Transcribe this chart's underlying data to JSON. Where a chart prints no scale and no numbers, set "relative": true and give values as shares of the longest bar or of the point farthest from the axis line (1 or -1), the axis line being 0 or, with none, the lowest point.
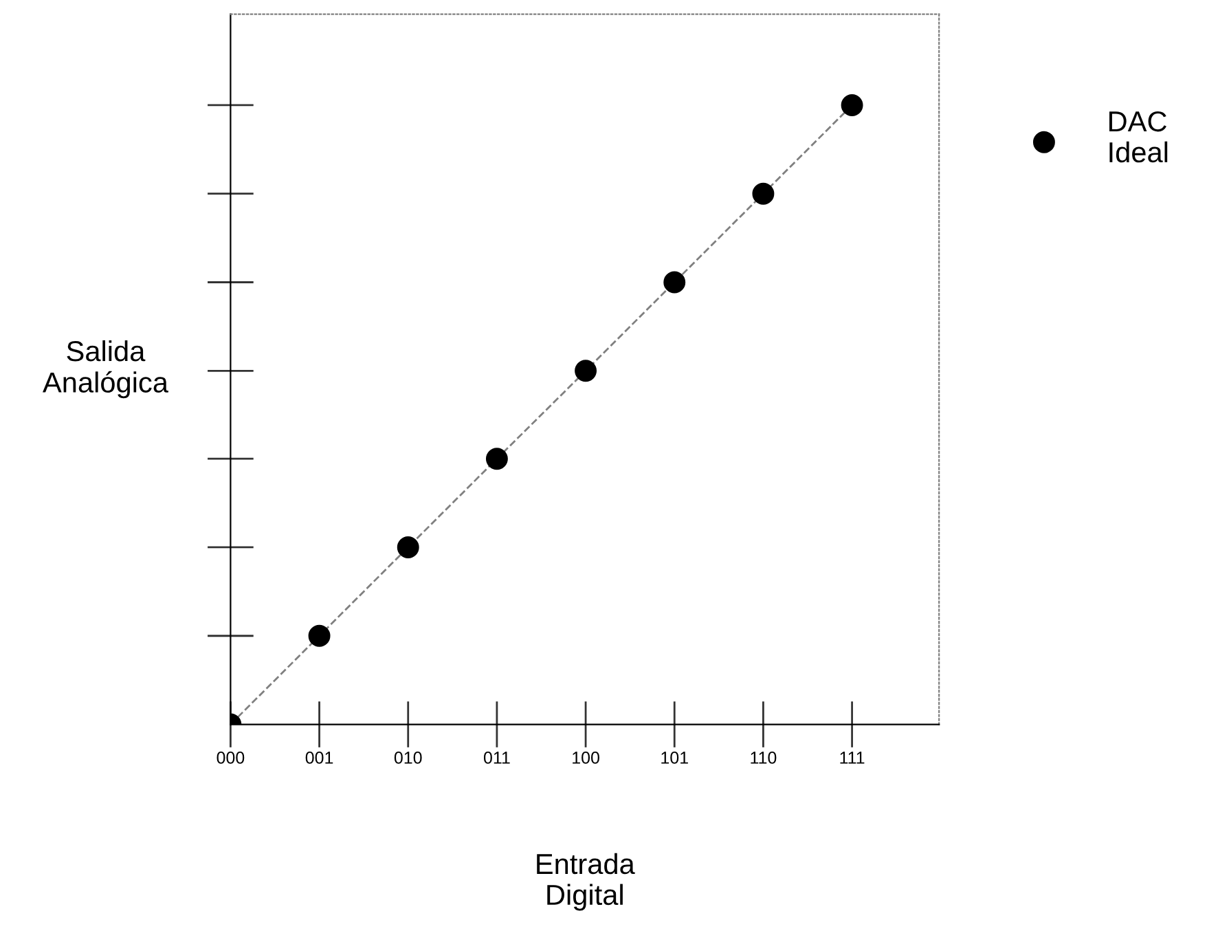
{
  "chart_data": {
    "type": "scatter",
    "xlabel": "Entrada\nDigital",
    "ylabel": "Salida\nAnalógica",
    "categories": [
      "000",
      "001",
      "010",
      "011",
      "100",
      "101",
      "110",
      "111"
    ],
    "relative": true,
    "legend": "top right",
    "grid": false,
    "series": [
      {
        "type": "line",
        "color": "#808080",
        "line_style": "dashed",
        "values": [
          0,
          0.143,
          0.286,
          0.429,
          0.571,
          0.714,
          0.857,
          1
        ]
      },
      {
        "name": "DAC\nIdeal",
        "marker": "circle",
        "color": "#000000",
        "values": [
          0,
          0.143,
          0.286,
          0.429,
          0.571,
          0.714,
          0.857,
          1
        ]
      }
    ]
  }
}
